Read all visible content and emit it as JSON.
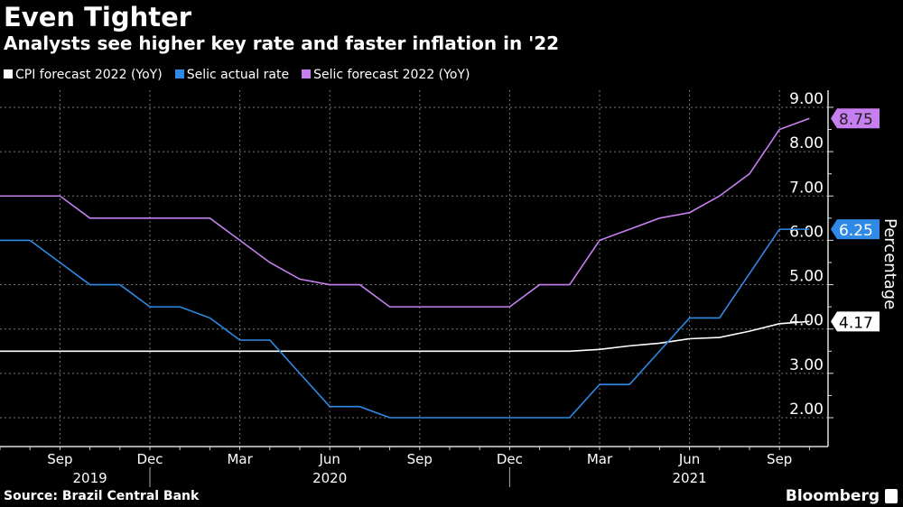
{
  "chart_data": {
    "type": "line",
    "title": "Even Tighter",
    "subtitle": "Analysts see higher key rate and faster inflation in '22",
    "ylabel": "Percentage",
    "ylim": [
      2,
      9
    ],
    "yticks": [
      "2.00",
      "3.00",
      "4.00",
      "5.00",
      "6.00",
      "7.00",
      "8.00",
      "9.00"
    ],
    "x_unit": "months since Jul 2019",
    "xticks": [
      {
        "m": 2,
        "label": "Sep"
      },
      {
        "m": 5,
        "label": "Dec"
      },
      {
        "m": 8,
        "label": "Mar"
      },
      {
        "m": 11,
        "label": "Jun"
      },
      {
        "m": 14,
        "label": "Sep"
      },
      {
        "m": 17,
        "label": "Dec"
      },
      {
        "m": 20,
        "label": "Mar"
      },
      {
        "m": 23,
        "label": "Jun"
      },
      {
        "m": 26,
        "label": "Sep"
      }
    ],
    "years": [
      {
        "m": 3,
        "label": "2019"
      },
      {
        "m": 11,
        "label": "2020"
      },
      {
        "m": 23,
        "label": "2021"
      }
    ],
    "year_dividers": [
      5,
      17
    ],
    "series": [
      {
        "name": "CPI forecast 2022 (YoY)",
        "color": "#ffffff",
        "last_label": "4.17",
        "points": [
          [
            0,
            3.5
          ],
          [
            19,
            3.5
          ],
          [
            20,
            3.54
          ],
          [
            21,
            3.62
          ],
          [
            22,
            3.68
          ],
          [
            23,
            3.78
          ],
          [
            24,
            3.81
          ],
          [
            25,
            3.95
          ],
          [
            26,
            4.12
          ],
          [
            27,
            4.17
          ]
        ]
      },
      {
        "name": "Selic actual rate",
        "color": "#2f8ae6",
        "last_label": "6.25",
        "points": [
          [
            0,
            6
          ],
          [
            1,
            6
          ],
          [
            2,
            5.5
          ],
          [
            3,
            5
          ],
          [
            4,
            5
          ],
          [
            5,
            4.5
          ],
          [
            6,
            4.5
          ],
          [
            7,
            4.25
          ],
          [
            8,
            3.75
          ],
          [
            9,
            3.75
          ],
          [
            10,
            3
          ],
          [
            11,
            2.25
          ],
          [
            12,
            2.25
          ],
          [
            13,
            2
          ],
          [
            19,
            2
          ],
          [
            20,
            2.75
          ],
          [
            21,
            2.75
          ],
          [
            22,
            3.5
          ],
          [
            23,
            4.25
          ],
          [
            24,
            4.25
          ],
          [
            25,
            5.25
          ],
          [
            26,
            6.25
          ],
          [
            27,
            6.25
          ]
        ]
      },
      {
        "name": "Selic forecast 2022 (YoY)",
        "color": "#c77ff0",
        "last_label": "8.75",
        "points": [
          [
            0,
            7
          ],
          [
            2,
            7
          ],
          [
            3,
            6.5
          ],
          [
            7,
            6.5
          ],
          [
            8,
            6
          ],
          [
            9,
            5.5
          ],
          [
            10,
            5.125
          ],
          [
            11,
            5
          ],
          [
            12,
            5
          ],
          [
            13,
            4.5
          ],
          [
            17,
            4.5
          ],
          [
            18,
            5
          ],
          [
            19,
            5
          ],
          [
            20,
            6
          ],
          [
            21,
            6.25
          ],
          [
            22,
            6.5
          ],
          [
            23,
            6.625
          ],
          [
            24,
            7
          ],
          [
            25,
            7.5
          ],
          [
            26,
            8.5
          ],
          [
            27,
            8.75
          ]
        ]
      }
    ],
    "source": "Source: Brazil Central Bank",
    "brand": "Bloomberg"
  }
}
